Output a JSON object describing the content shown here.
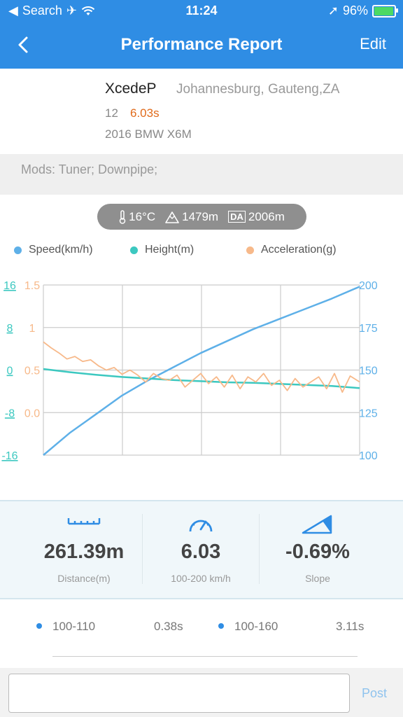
{
  "status_bar": {
    "carrier": "Search",
    "time": "11:24",
    "battery": "96%"
  },
  "nav": {
    "title": "Performance Report",
    "edit": "Edit"
  },
  "profile": {
    "username": "XcedeP",
    "location": "Johannesburg, Gauteng,ZA",
    "count": "12",
    "time": "6.03s",
    "car": "2016 BMW X6M"
  },
  "mods": "Mods: Tuner; Downpipe;",
  "conditions": {
    "temp": "16°C",
    "altitude": "1479m",
    "da_label": "DA",
    "density_altitude": "2006m"
  },
  "legend": [
    {
      "name": "Speed(km/h)",
      "color": "#5eb0e8"
    },
    {
      "name": "Height(m)",
      "color": "#3cc8c0"
    },
    {
      "name": "Acceleration(g)",
      "color": "#f7b98a"
    }
  ],
  "chart_data": {
    "type": "line",
    "x_range": [
      0,
      6.03
    ],
    "height_axis": {
      "ticks": [
        "16",
        "8",
        "0",
        "-8",
        "-16"
      ],
      "range": [
        -16,
        16
      ],
      "color": "#3cc8c0"
    },
    "accel_axis": {
      "ticks": [
        "1.5",
        "1",
        "0.5",
        "0.0"
      ],
      "range": [
        -0.5,
        1.5
      ],
      "color": "#f7b98a"
    },
    "speed_axis": {
      "ticks": [
        "200",
        "175",
        "150",
        "125",
        "100"
      ],
      "range": [
        100,
        200
      ],
      "color": "#5eb0e8"
    },
    "series": [
      {
        "name": "Speed(km/h)",
        "color": "#5eb0e8",
        "x": [
          0,
          0.5,
          1,
          1.5,
          2,
          2.5,
          3,
          3.5,
          4,
          4.5,
          5,
          5.5,
          6.03
        ],
        "values": [
          100,
          113,
          124,
          135,
          144,
          152,
          160,
          167,
          174,
          180,
          186,
          192,
          199
        ]
      },
      {
        "name": "Height(m)",
        "color": "#3cc8c0",
        "x": [
          0,
          0.5,
          1,
          1.5,
          2,
          2.5,
          3,
          3.5,
          4,
          4.5,
          5,
          5.5,
          6.03
        ],
        "values": [
          0.2,
          -0.4,
          -0.9,
          -1.3,
          -1.6,
          -1.9,
          -2.1,
          -2.3,
          -2.4,
          -2.6,
          -2.8,
          -3.0,
          -3.4
        ]
      },
      {
        "name": "Acceleration(g)",
        "color": "#f7b98a",
        "x": [
          0,
          0.15,
          0.3,
          0.45,
          0.6,
          0.75,
          0.9,
          1.05,
          1.2,
          1.35,
          1.5,
          1.65,
          1.8,
          1.95,
          2.1,
          2.25,
          2.4,
          2.55,
          2.7,
          2.85,
          3.0,
          3.15,
          3.3,
          3.45,
          3.6,
          3.75,
          3.9,
          4.05,
          4.2,
          4.35,
          4.5,
          4.65,
          4.8,
          4.95,
          5.1,
          5.25,
          5.4,
          5.55,
          5.7,
          5.85,
          6.03
        ],
        "values": [
          0.83,
          0.76,
          0.7,
          0.63,
          0.66,
          0.6,
          0.62,
          0.55,
          0.5,
          0.53,
          0.45,
          0.5,
          0.44,
          0.36,
          0.46,
          0.4,
          0.38,
          0.44,
          0.3,
          0.38,
          0.46,
          0.34,
          0.42,
          0.3,
          0.44,
          0.28,
          0.42,
          0.36,
          0.46,
          0.32,
          0.38,
          0.26,
          0.4,
          0.3,
          0.36,
          0.42,
          0.28,
          0.46,
          0.24,
          0.43,
          0.36
        ]
      }
    ],
    "grid": true
  },
  "stats": [
    {
      "value": "261.39m",
      "label": "Distance(m)"
    },
    {
      "value": "6.03",
      "label": "100-200 km/h"
    },
    {
      "value": "-0.69%",
      "label": "Slope"
    }
  ],
  "splits": [
    {
      "range": "100-110",
      "time": "0.38s"
    },
    {
      "range": "100-160",
      "time": "3.11s"
    }
  ],
  "comment": {
    "placeholder": "",
    "post": "Post"
  }
}
